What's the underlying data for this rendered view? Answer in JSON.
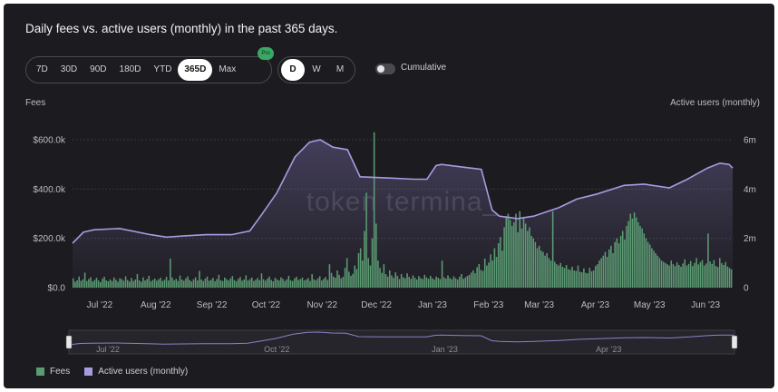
{
  "header": {
    "title": "Daily fees vs. active users (monthly) in the past 365 days."
  },
  "range_buttons": [
    {
      "label": "7D",
      "active": false
    },
    {
      "label": "30D",
      "active": false
    },
    {
      "label": "90D",
      "active": false
    },
    {
      "label": "180D",
      "active": false
    },
    {
      "label": "YTD",
      "active": false
    },
    {
      "label": "365D",
      "active": true
    },
    {
      "label": "Max",
      "active": false
    }
  ],
  "pro_badge": "Pro",
  "interval_buttons": [
    {
      "label": "D",
      "active": true
    },
    {
      "label": "W",
      "active": false
    },
    {
      "label": "M",
      "active": false
    }
  ],
  "cumulative": {
    "label": "Cumulative",
    "on": false
  },
  "watermark": "token termina_",
  "colors": {
    "fees": "#5c9c74",
    "users": "#a89be0",
    "background": "#1c1b1f"
  },
  "chart_data": {
    "type": "bar+line",
    "title": "Daily fees vs. active users (monthly) in the past 365 days.",
    "ylabel_left": "Fees",
    "ylabel_right": "Active users (monthly)",
    "ylim_left": [
      0,
      600000
    ],
    "ylim_right": [
      0,
      6000000
    ],
    "y_left_ticks": [
      "$0.0",
      "$200.0k",
      "$400.0k",
      "$600.0k"
    ],
    "y_right_ticks": [
      "0",
      "2m",
      "4m",
      "6m"
    ],
    "x_ticks": [
      "Jul '22",
      "Aug '22",
      "Sep '22",
      "Oct '22",
      "Nov '22",
      "Dec '22",
      "Jan '23",
      "Feb '23",
      "Mar '23",
      "Apr '23",
      "May '23",
      "Jun '23"
    ],
    "navigator_ticks": [
      "Jul '22",
      "Oct '22",
      "Jan '23",
      "Apr '23"
    ],
    "legend": [
      "Fees",
      "Active users (monthly)"
    ],
    "active_users_monthly": {
      "x": [
        "2022-06-19",
        "2022-06-25",
        "2022-07-01",
        "2022-07-15",
        "2022-08-01",
        "2022-08-10",
        "2022-08-20",
        "2022-09-01",
        "2022-09-15",
        "2022-09-25",
        "2022-10-01",
        "2022-10-10",
        "2022-10-20",
        "2022-10-28",
        "2022-11-03",
        "2022-11-10",
        "2022-11-18",
        "2022-11-25",
        "2022-12-10",
        "2022-12-25",
        "2023-01-01",
        "2023-01-06",
        "2023-01-09",
        "2023-01-20",
        "2023-01-31",
        "2023-02-06",
        "2023-02-10",
        "2023-02-20",
        "2023-03-01",
        "2023-03-15",
        "2023-03-25",
        "2023-04-05",
        "2023-04-20",
        "2023-05-01",
        "2023-05-15",
        "2023-05-25",
        "2023-06-05",
        "2023-06-12",
        "2023-06-17",
        "2023-06-19"
      ],
      "values": [
        1800000,
        2250000,
        2350000,
        2400000,
        2150000,
        2050000,
        2100000,
        2150000,
        2150000,
        2300000,
        2900000,
        3850000,
        5300000,
        5900000,
        6000000,
        5700000,
        5600000,
        4500000,
        4450000,
        4400000,
        4400000,
        4950000,
        5000000,
        4900000,
        4800000,
        3150000,
        2900000,
        2800000,
        2900000,
        3250000,
        3600000,
        3800000,
        4150000,
        4200000,
        4050000,
        4400000,
        4850000,
        5050000,
        5000000,
        4850000
      ]
    },
    "fees_daily": {
      "x_start": "2022-06-19",
      "x_end": "2023-06-19",
      "values": [
        38000,
        24000,
        30000,
        45000,
        28000,
        34000,
        61000,
        27000,
        35000,
        42000,
        25000,
        31000,
        40000,
        29000,
        22000,
        36000,
        44000,
        30000,
        26000,
        33000,
        27000,
        41000,
        32000,
        24000,
        38000,
        35000,
        28000,
        46000,
        31000,
        25000,
        39000,
        27000,
        33000,
        55000,
        30000,
        24000,
        42000,
        29000,
        35000,
        48000,
        26000,
        31000,
        37000,
        28000,
        34000,
        40000,
        27000,
        32000,
        44000,
        29000,
        118000,
        41000,
        30000,
        36000,
        27000,
        49000,
        33000,
        28000,
        38000,
        46000,
        31000,
        25000,
        34000,
        42000,
        29000,
        68000,
        33000,
        27000,
        37000,
        45000,
        28000,
        32000,
        40000,
        26000,
        35000,
        52000,
        30000,
        27000,
        41000,
        34000,
        29000,
        38000,
        47000,
        31000,
        26000,
        36000,
        43000,
        28000,
        33000,
        50000,
        29000,
        35000,
        41000,
        27000,
        32000,
        39000,
        30000,
        58000,
        34000,
        28000,
        37000,
        45000,
        31000,
        26000,
        40000,
        33000,
        29000,
        42000,
        36000,
        27000,
        34000,
        48000,
        30000,
        27000,
        38000,
        44000,
        31000,
        35000,
        41000,
        29000,
        33000,
        39000,
        27000,
        55000,
        34000,
        30000,
        38000,
        46000,
        29000,
        36000,
        43000,
        31000,
        95000,
        60000,
        45000,
        40000,
        70000,
        52000,
        38000,
        44000,
        80000,
        120000,
        65000,
        48000,
        56000,
        90000,
        75000,
        140000,
        160000,
        110000,
        230000,
        385000,
        120000,
        90000,
        200000,
        630000,
        260000,
        110000,
        80000,
        60000,
        95000,
        55000,
        45000,
        70000,
        50000,
        40000,
        62000,
        48000,
        35000,
        55000,
        42000,
        38000,
        58000,
        44000,
        36000,
        50000,
        40000,
        33000,
        47000,
        39000,
        35000,
        52000,
        41000,
        36000,
        48000,
        38000,
        33000,
        45000,
        40000,
        35000,
        110000,
        42000,
        37000,
        50000,
        39000,
        34000,
        46000,
        38000,
        33000,
        44000,
        55000,
        36000,
        42000,
        48000,
        52000,
        61000,
        70000,
        58000,
        83000,
        96000,
        72000,
        68000,
        118000,
        90000,
        102000,
        135000,
        110000,
        160000,
        125000,
        180000,
        205000,
        150000,
        245000,
        290000,
        300000,
        275000,
        250000,
        265000,
        300000,
        225000,
        310000,
        240000,
        285000,
        260000,
        230000,
        245000,
        210000,
        200000,
        185000,
        160000,
        170000,
        150000,
        145000,
        130000,
        140000,
        120000,
        110000,
        310000,
        105000,
        95000,
        90000,
        100000,
        85000,
        80000,
        92000,
        75000,
        72000,
        85000,
        70000,
        68000,
        90000,
        65000,
        62000,
        78000,
        60000,
        58000,
        80000,
        66000,
        70000,
        88000,
        95000,
        110000,
        120000,
        130000,
        145000,
        125000,
        155000,
        170000,
        140000,
        185000,
        200000,
        180000,
        210000,
        230000,
        195000,
        250000,
        270000,
        300000,
        280000,
        305000,
        285000,
        265000,
        250000,
        240000,
        220000,
        200000,
        185000,
        175000,
        160000,
        150000,
        140000,
        130000,
        120000,
        110000,
        105000,
        100000,
        95000,
        90000,
        110000,
        95000,
        88000,
        102000,
        92000,
        85000,
        98000,
        115000,
        90000,
        96000,
        108000,
        88000,
        100000,
        120000,
        94000,
        104000,
        112000,
        90000,
        98000,
        220000,
        106000,
        96000,
        112000,
        88000,
        84000,
        120000,
        100000,
        92000,
        104000,
        86000,
        80000,
        74000
      ]
    }
  }
}
